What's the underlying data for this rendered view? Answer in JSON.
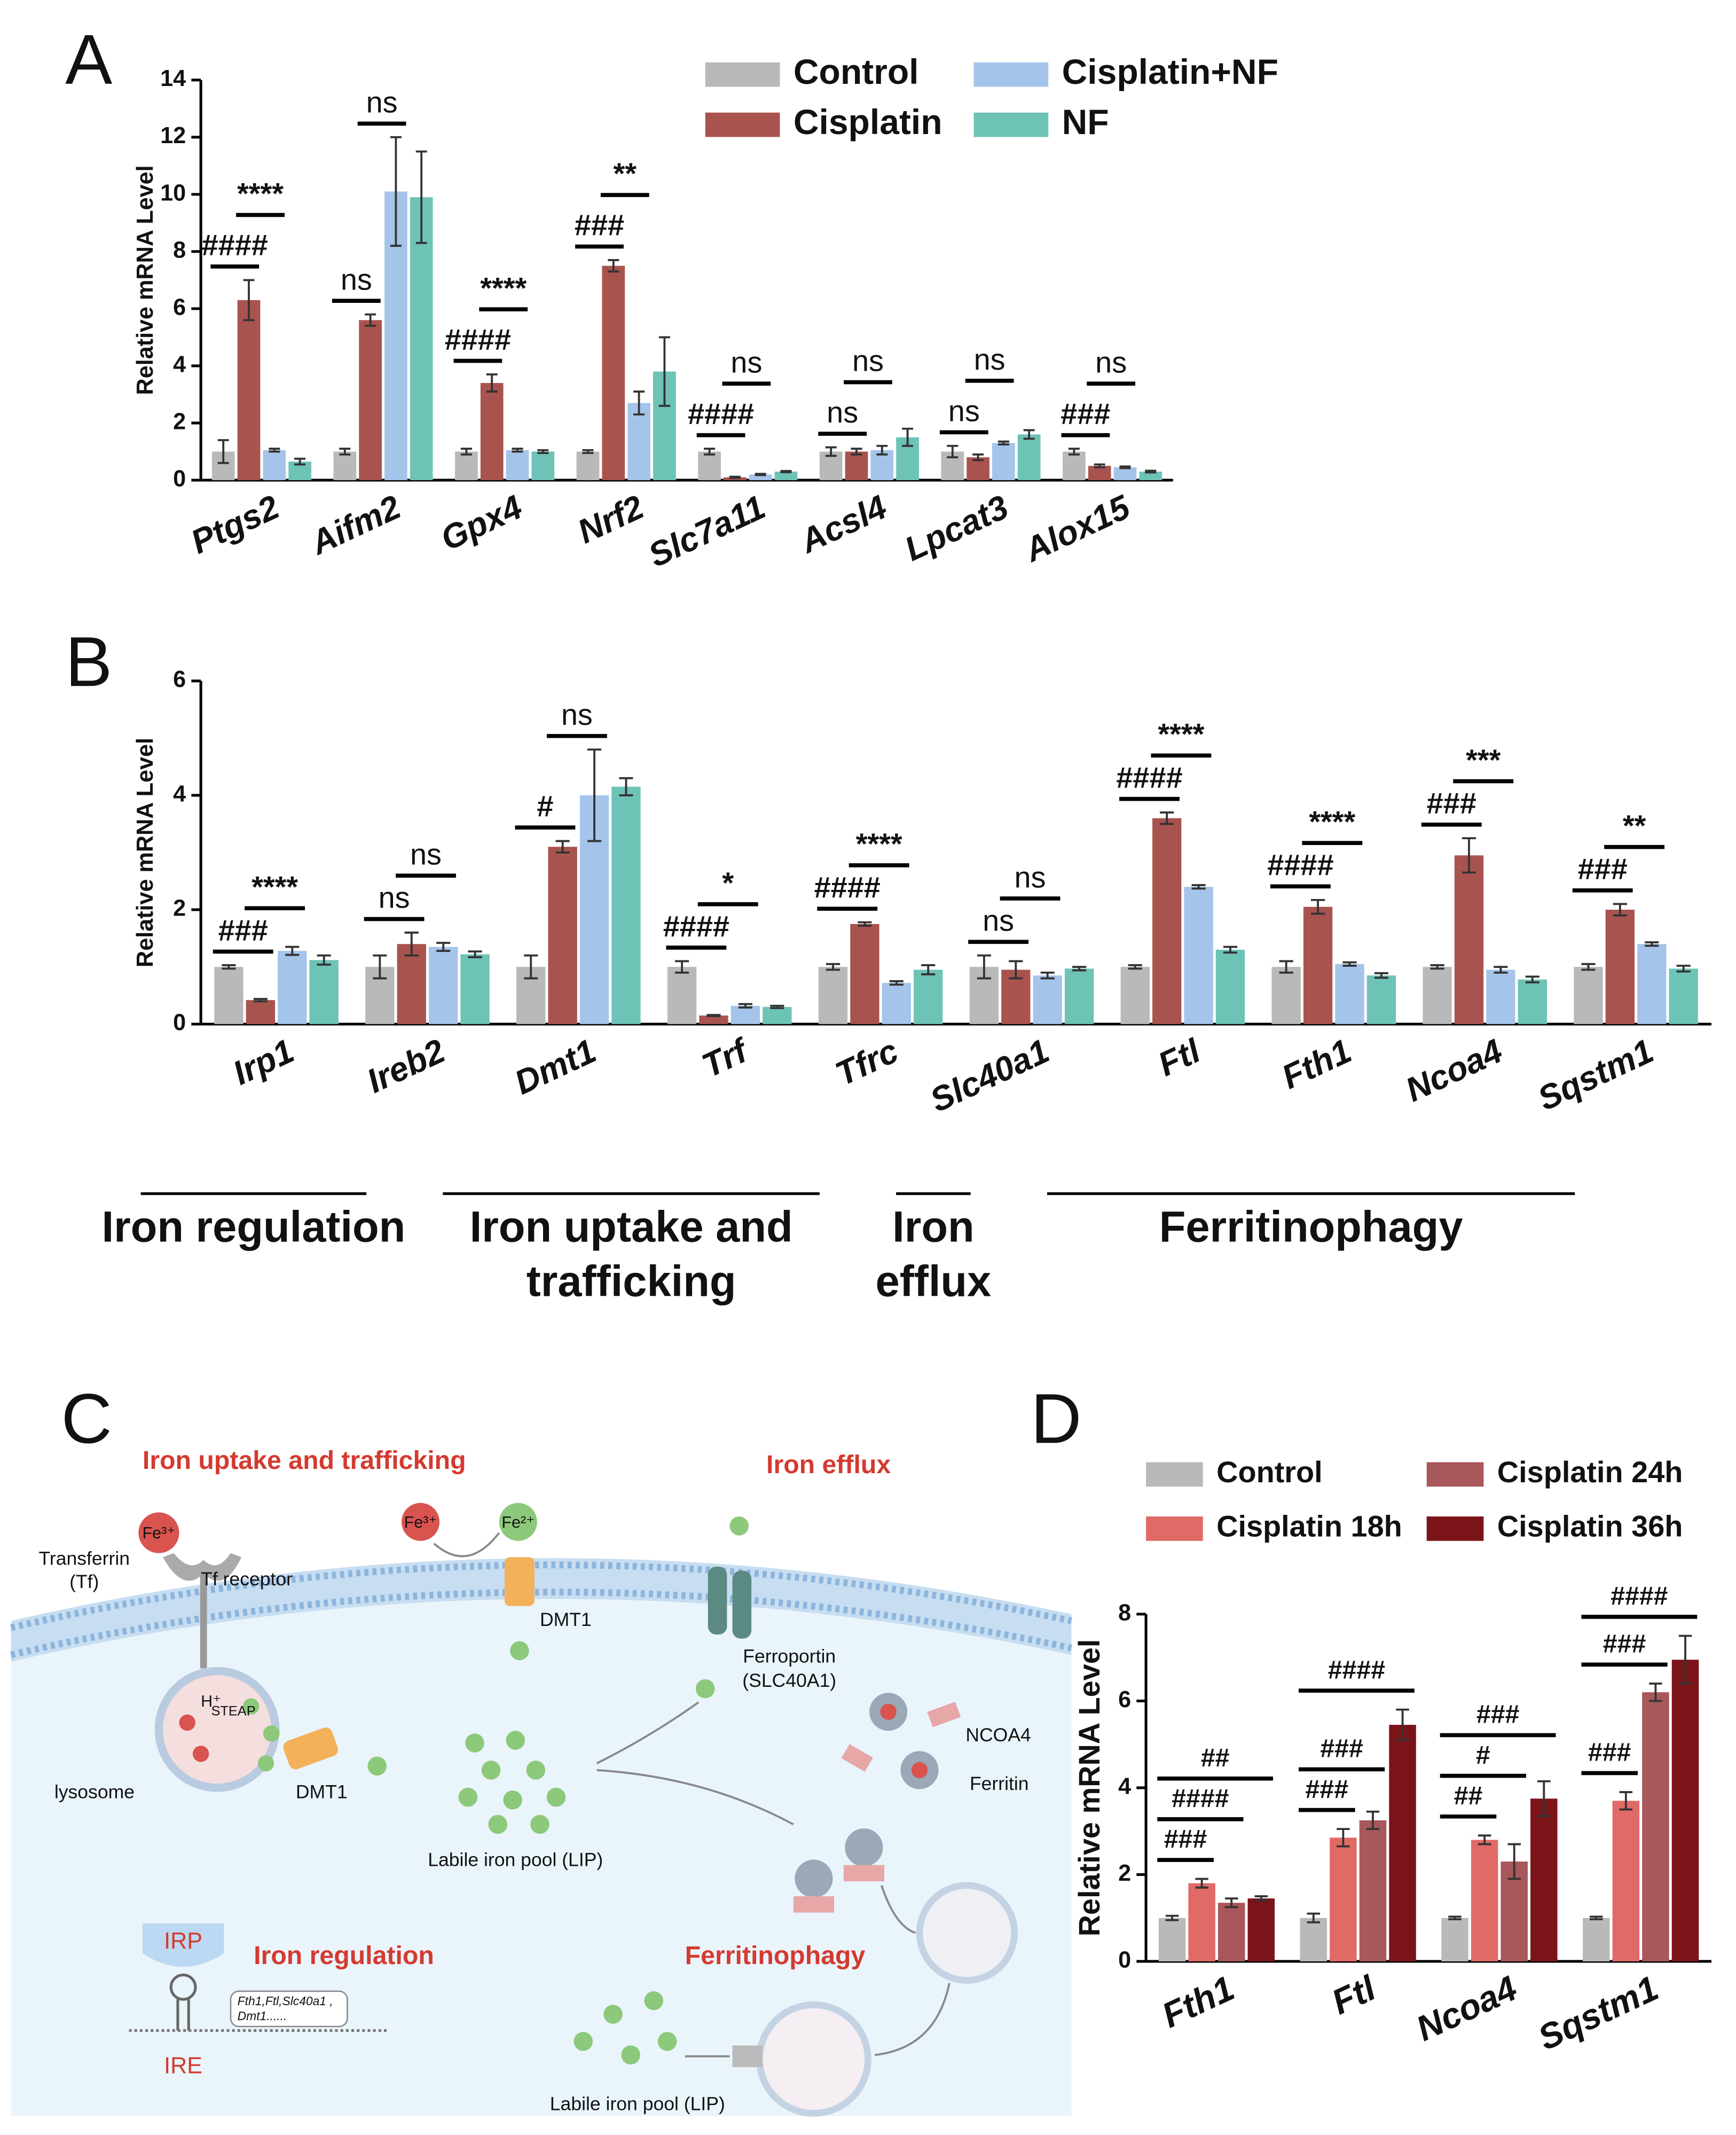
{
  "chart_data": [
    {
      "type": "bar",
      "panel": "A",
      "y_label": "Relative mRNA Level",
      "categories": [
        "Ptgs2",
        "Aifm2",
        "Gpx4",
        "Nrf2",
        "Slc7a11",
        "Acsl4",
        "Lpcat3",
        "Alox15"
      ],
      "series": [
        {
          "name": "Control",
          "color": "#b9b9b9",
          "values": [
            1.0,
            1.0,
            1.0,
            1.0,
            1.0,
            1.0,
            1.0,
            1.0
          ],
          "errors": [
            0.4,
            0.1,
            0.1,
            0.05,
            0.1,
            0.15,
            0.2,
            0.1
          ]
        },
        {
          "name": "Cisplatin",
          "color": "#a9534f",
          "values": [
            6.3,
            5.6,
            3.4,
            7.5,
            0.1,
            1.0,
            0.8,
            0.5
          ],
          "errors": [
            0.7,
            0.2,
            0.3,
            0.2,
            0.02,
            0.1,
            0.1,
            0.05
          ]
        },
        {
          "name": "Cisplatin+NF",
          "color": "#a5c4ea",
          "values": [
            1.05,
            10.1,
            1.05,
            2.7,
            0.2,
            1.05,
            1.3,
            0.45
          ],
          "errors": [
            0.05,
            1.9,
            0.05,
            0.4,
            0.02,
            0.15,
            0.05,
            0.03
          ]
        },
        {
          "name": "NF",
          "color": "#6dc3b6",
          "values": [
            0.65,
            9.9,
            1.0,
            3.8,
            0.3,
            1.5,
            1.6,
            0.3
          ],
          "errors": [
            0.1,
            1.6,
            0.05,
            1.2,
            0.02,
            0.3,
            0.15,
            0.03
          ]
        }
      ],
      "annotations": [
        [
          "####",
          "****"
        ],
        [
          "ns",
          "ns"
        ],
        [
          "####",
          "****"
        ],
        [
          "###",
          "**"
        ],
        [
          "####",
          "ns"
        ],
        [
          "ns",
          "ns"
        ],
        [
          "ns",
          "ns"
        ],
        [
          "###",
          "ns"
        ]
      ],
      "ylim": [
        0,
        14
      ],
      "yticks": [
        0,
        2,
        4,
        6,
        8,
        10,
        12,
        14
      ]
    },
    {
      "type": "bar",
      "panel": "B",
      "y_label": "Relative mRNA Level",
      "categories": [
        "Irp1",
        "Ireb2",
        "Dmt1",
        "Trf",
        "Tfrc",
        "Slc40a1",
        "Ftl",
        "Fth1",
        "Ncoa4",
        "Sqstm1"
      ],
      "series": [
        {
          "color": "#b9b9b9",
          "values": [
            1.0,
            1.0,
            1.0,
            1.0,
            1.0,
            1.0,
            1.0,
            1.0,
            1.0,
            1.0
          ],
          "errors": [
            0.03,
            0.2,
            0.2,
            0.1,
            0.05,
            0.2,
            0.03,
            0.1,
            0.03,
            0.05
          ]
        },
        {
          "color": "#a9534f",
          "values": [
            0.42,
            1.4,
            3.1,
            0.15,
            1.75,
            0.95,
            3.6,
            2.05,
            2.95,
            2.0
          ],
          "errors": [
            0.02,
            0.2,
            0.1,
            0.01,
            0.03,
            0.15,
            0.1,
            0.12,
            0.3,
            0.1
          ]
        },
        {
          "color": "#a5c4ea",
          "values": [
            1.28,
            1.35,
            4.0,
            0.32,
            0.72,
            0.85,
            2.4,
            1.05,
            0.95,
            1.4
          ],
          "errors": [
            0.07,
            0.07,
            0.8,
            0.03,
            0.03,
            0.05,
            0.03,
            0.03,
            0.05,
            0.03
          ]
        },
        {
          "color": "#6dc3b6",
          "values": [
            1.12,
            1.22,
            4.15,
            0.3,
            0.95,
            0.97,
            1.3,
            0.85,
            0.78,
            0.97
          ],
          "errors": [
            0.08,
            0.05,
            0.15,
            0.02,
            0.08,
            0.03,
            0.05,
            0.04,
            0.05,
            0.05
          ]
        }
      ],
      "annotations": [
        [
          "###",
          "****"
        ],
        [
          "ns",
          "ns"
        ],
        [
          "#",
          "ns"
        ],
        [
          "####",
          "*"
        ],
        [
          "####",
          "****"
        ],
        [
          "ns",
          "ns"
        ],
        [
          "####",
          "****"
        ],
        [
          "####",
          "****"
        ],
        [
          "###",
          "***"
        ],
        [
          "###",
          "**"
        ]
      ],
      "groups": [
        {
          "lines": [
            "Iron regulation"
          ],
          "categories": [
            "Irp1",
            "Ireb2"
          ]
        },
        {
          "lines": [
            "Iron uptake and",
            "trafficking"
          ],
          "categories": [
            "Dmt1",
            "Trf",
            "Tfrc"
          ]
        },
        {
          "lines": [
            "Iron",
            "efflux"
          ],
          "categories": [
            "Slc40a1"
          ]
        },
        {
          "lines": [
            "Ferritinophagy"
          ],
          "categories": [
            "Ftl",
            "Fth1",
            "Ncoa4",
            "Sqstm1"
          ]
        }
      ],
      "ylim": [
        0,
        6
      ],
      "yticks": [
        0,
        2,
        4,
        6
      ]
    },
    {
      "type": "bar",
      "panel": "D",
      "y_label": "Relative mRNA Level",
      "categories": [
        "Fth1",
        "Ftl",
        "Ncoa4",
        "Sqstm1"
      ],
      "series": [
        {
          "name": "Control",
          "color": "#b9b9b9",
          "values": [
            1.0,
            1.0,
            1.0,
            1.0
          ],
          "errors": [
            0.05,
            0.1,
            0.03,
            0.03
          ]
        },
        {
          "name": "Cisplatin 18h",
          "color": "#e06a66",
          "values": [
            1.8,
            2.85,
            2.8,
            3.7
          ],
          "errors": [
            0.1,
            0.2,
            0.1,
            0.2
          ]
        },
        {
          "name": "Cisplatin 24h",
          "color": "#a8575b",
          "values": [
            1.35,
            3.25,
            2.3,
            6.2
          ],
          "errors": [
            0.1,
            0.2,
            0.4,
            0.2
          ]
        },
        {
          "name": "Cisplatin 36h",
          "color": "#7b1418",
          "values": [
            1.45,
            5.45,
            3.75,
            6.95
          ],
          "errors": [
            0.05,
            0.35,
            0.4,
            0.55
          ]
        }
      ],
      "annotations": [
        [
          "###",
          "####",
          "##"
        ],
        [
          "###",
          "###",
          "####"
        ],
        [
          "##",
          "#",
          "###"
        ],
        [
          "###",
          "###",
          "####"
        ]
      ],
      "ylim": [
        0,
        8
      ],
      "yticks": [
        0,
        2,
        4,
        6,
        8
      ]
    }
  ],
  "diagram": {
    "panel": "C",
    "sections": {
      "uptake": "Iron uptake and trafficking",
      "efflux": "Iron efflux",
      "regulation": "Iron regulation",
      "ferritinophagy": "Ferritinophagy"
    },
    "labels": {
      "transferrin": [
        "Transferrin",
        "(Tf)"
      ],
      "tf_receptor": "Tf receptor",
      "fe3_tf": "Fe³⁺",
      "fe3_free": "Fe³⁺",
      "fe2": "Fe²⁺",
      "h": "H⁺",
      "steap": "STEAP",
      "lysosome": "lysosome",
      "dmt1_lysosome": "DMT1",
      "dmt1_membrane": "DMT1",
      "lip_cytosol": "Labile iron pool (LIP)",
      "lip_lysosome": "Labile iron pool (LIP)",
      "ferroportin": [
        "Ferroportin",
        "(SLC40A1)"
      ],
      "ncoa4": "NCOA4",
      "ferritin": "Ferritin",
      "irp": "IRP",
      "ire": "IRE",
      "targets": [
        "Fth1,Ftl,Slc40a1 ,",
        "Dmt1......"
      ]
    }
  }
}
